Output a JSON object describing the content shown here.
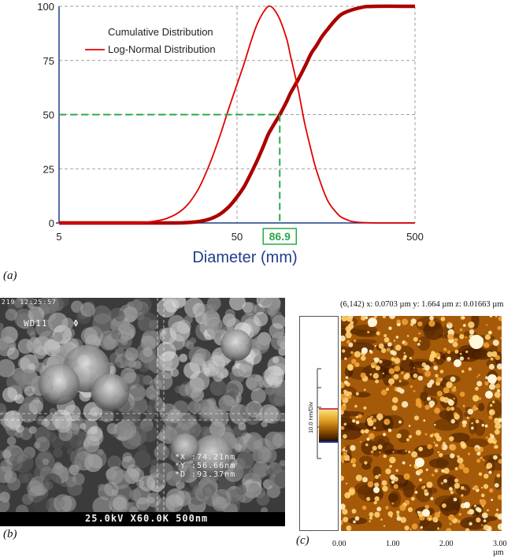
{
  "panels": {
    "a_label": "(a)",
    "b_label": "(b)",
    "c_label": "(c)"
  },
  "chart_data": {
    "type": "line",
    "xlabel": "Diameter (mm)",
    "x_scale": "log",
    "xlim": [
      5,
      500
    ],
    "ylim": [
      0,
      100
    ],
    "x_ticks": [
      "5",
      "50",
      "500"
    ],
    "y_ticks": [
      "0",
      "25",
      "50",
      "75",
      "100"
    ],
    "grid": true,
    "legend_position": "top-left",
    "series": [
      {
        "name": "Cumulative Distribution",
        "color": "#aa0000",
        "x": [
          5,
          15,
          20,
          25,
          30,
          35,
          40,
          45,
          50,
          55,
          60,
          65,
          70,
          75,
          80,
          86.9,
          95,
          100,
          110,
          120,
          130,
          140,
          150,
          160,
          180,
          200,
          250,
          300,
          500
        ],
        "y": [
          0,
          0,
          0,
          0.1,
          0.6,
          1.8,
          4,
          7.5,
          12,
          17,
          23,
          29,
          35,
          41,
          45,
          50,
          56,
          60,
          66,
          72,
          78,
          82,
          86,
          89,
          94,
          97,
          99.5,
          100,
          100
        ]
      },
      {
        "name": "Log-Normal Distribution",
        "color": "#e00000",
        "x": [
          5,
          12,
          15,
          20,
          25,
          30,
          35,
          40,
          45,
          50,
          55,
          60,
          65,
          70,
          75,
          80,
          86.9,
          95,
          100,
          110,
          120,
          130,
          140,
          160,
          180,
          200,
          250,
          500
        ],
        "y": [
          0,
          0,
          0.2,
          2,
          6.5,
          15,
          27,
          40,
          53,
          64,
          74,
          84,
          92,
          97,
          100,
          99,
          94,
          85,
          77,
          62,
          46,
          34,
          24,
          11,
          5,
          2,
          0.2,
          0
        ]
      }
    ],
    "annotation": {
      "x": 86.9,
      "y": 50,
      "label": "86.9",
      "color": "#2aa84a"
    }
  },
  "sem": {
    "timestamp": "219 12:25:57",
    "wd_label": "WD11",
    "phi_symbol": "Φ",
    "measurements": [
      {
        "key": "X",
        "value": ":74.21nm"
      },
      {
        "key": "Y",
        "value": ":56.66nm"
      },
      {
        "key": "D",
        "value": ":93.37nm"
      }
    ],
    "footer": "25.0kV X60.0K 500nm"
  },
  "afm": {
    "header": "(6,142)  x: 0.0703 µm   y: 1.664 µm   z: 0.01663 µm",
    "scale_label": "10.0 nm/Div",
    "x_ticks": [
      "0.00",
      "1.00",
      "2.00",
      "3.00 µm"
    ]
  }
}
